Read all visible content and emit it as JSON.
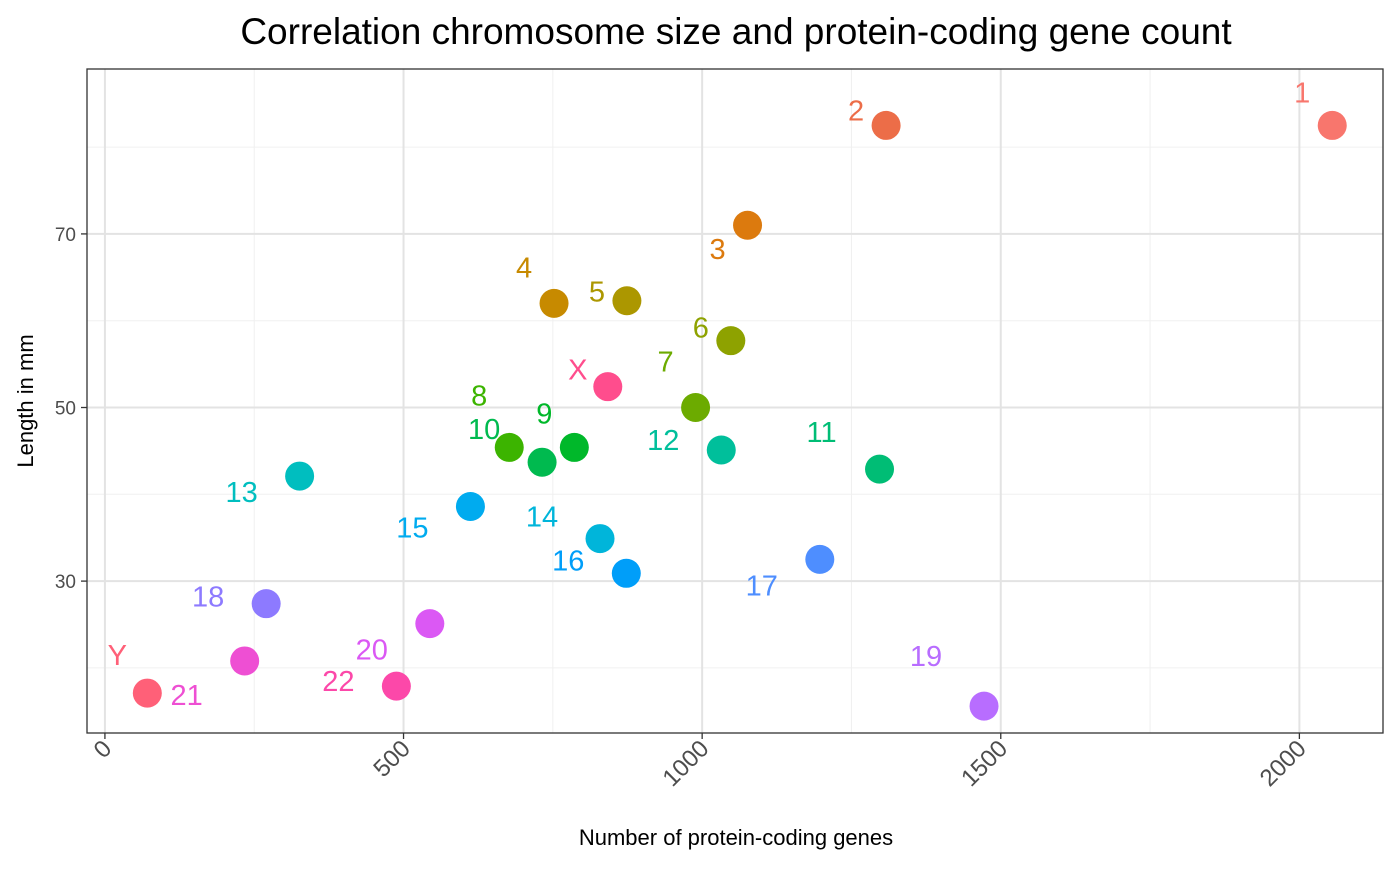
{
  "chart_data": {
    "type": "scatter",
    "title": "Correlation chromosome size and protein-coding gene count",
    "xlabel": "Number of protein-coding genes",
    "ylabel": "Length in mm",
    "xlim": [
      -30,
      2140
    ],
    "ylim": [
      12.5,
      89
    ],
    "x_ticks": [
      0,
      500,
      1000,
      1500,
      2000
    ],
    "x_tick_labels": [
      "0",
      "500",
      "1000",
      "1500",
      "2000"
    ],
    "y_ticks": [
      30,
      50,
      70
    ],
    "y_tick_labels": [
      "30",
      "50",
      "70"
    ],
    "grid": true,
    "legend": "none",
    "points": [
      {
        "label": "1",
        "x": 2055,
        "y": 82.5,
        "color": "#F8766D",
        "label_dx": -30,
        "label_dy": -32
      },
      {
        "label": "2",
        "x": 1308,
        "y": 82.5,
        "color": "#EC6D48",
        "label_dx": -30,
        "label_dy": -14
      },
      {
        "label": "3",
        "x": 1076,
        "y": 71.0,
        "color": "#DC7A0E",
        "label_dx": -30,
        "label_dy": 25
      },
      {
        "label": "4",
        "x": 752,
        "y": 62.0,
        "color": "#C78A00",
        "label_dx": -30,
        "label_dy": -35
      },
      {
        "label": "5",
        "x": 874,
        "y": 62.3,
        "color": "#AC9700",
        "label_dx": -30,
        "label_dy": -8
      },
      {
        "label": "6",
        "x": 1048,
        "y": 57.7,
        "color": "#8EA200",
        "label_dx": -30,
        "label_dy": -12
      },
      {
        "label": "7",
        "x": 989,
        "y": 50.0,
        "color": "#6CAB00",
        "label_dx": -30,
        "label_dy": -45
      },
      {
        "label": "8",
        "x": 677,
        "y": 45.4,
        "color": "#3CB400",
        "label_dx": -30,
        "label_dy": -51
      },
      {
        "label": "9",
        "x": 786,
        "y": 45.4,
        "color": "#00B82A",
        "label_dx": -30,
        "label_dy": -33
      },
      {
        "label": "10",
        "x": 732,
        "y": 43.7,
        "color": "#00BA4F",
        "label_dx": -58,
        "label_dy": -32
      },
      {
        "label": "11",
        "x": 1297,
        "y": 42.9,
        "color": "#00BD75",
        "label_dx": -58,
        "label_dy": -36
      },
      {
        "label": "12",
        "x": 1032,
        "y": 45.1,
        "color": "#00BF9B",
        "label_dx": -58,
        "label_dy": -9
      },
      {
        "label": "13",
        "x": 326,
        "y": 42.1,
        "color": "#00BEBF",
        "label_dx": -58,
        "label_dy": 17
      },
      {
        "label": "14",
        "x": 829,
        "y": 34.9,
        "color": "#00B5DA",
        "label_dx": -58,
        "label_dy": -21
      },
      {
        "label": "15",
        "x": 612,
        "y": 38.6,
        "color": "#00ABEF",
        "label_dx": -58,
        "label_dy": 22
      },
      {
        "label": "16",
        "x": 873,
        "y": 30.9,
        "color": "#009EF9",
        "label_dx": -58,
        "label_dy": -12
      },
      {
        "label": "17",
        "x": 1197,
        "y": 32.5,
        "color": "#4E8EFF",
        "label_dx": -58,
        "label_dy": 27
      },
      {
        "label": "18",
        "x": 270,
        "y": 27.4,
        "color": "#8D7AFF",
        "label_dx": -58,
        "label_dy": -6
      },
      {
        "label": "19",
        "x": 1472,
        "y": 15.6,
        "color": "#B86DFF",
        "label_dx": -58,
        "label_dy": -49
      },
      {
        "label": "20",
        "x": 544,
        "y": 25.1,
        "color": "#DB58F4",
        "label_dx": -58,
        "label_dy": 27
      },
      {
        "label": "21",
        "x": 234,
        "y": 20.8,
        "color": "#EE4FD3",
        "label_dx": -58,
        "label_dy": 35
      },
      {
        "label": "22",
        "x": 488,
        "y": 17.9,
        "color": "#FC48A9",
        "label_dx": -58,
        "label_dy": -4
      },
      {
        "label": "X",
        "x": 842,
        "y": 52.4,
        "color": "#FF4D8D",
        "label_dx": -30,
        "label_dy": -16
      },
      {
        "label": "Y",
        "x": 71,
        "y": 17.1,
        "color": "#FF6078",
        "label_dx": -30,
        "label_dy": -37
      }
    ]
  }
}
